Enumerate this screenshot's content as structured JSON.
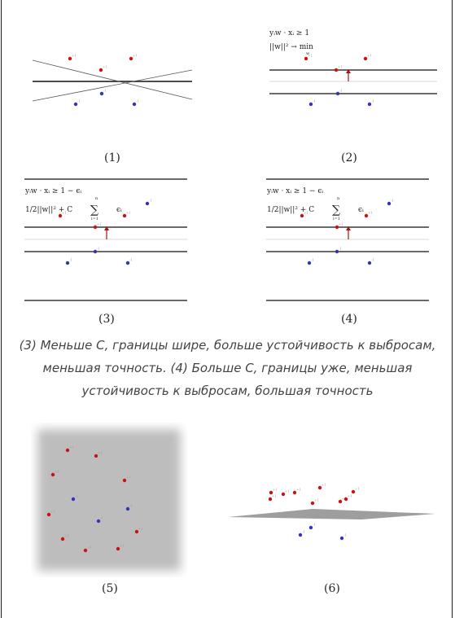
{
  "figures": {
    "f1": {
      "label": "(1)"
    },
    "f2": {
      "label": "(2)",
      "eq1": "yᵢw · xᵢ ≥ 1",
      "eq2": "||w||² → min",
      "eq2_sub": "w"
    },
    "f3": {
      "label": "(3)",
      "eq1": "yᵢw · xᵢ ≥ 1 − ϵᵢ",
      "eq2_a": "1/2||w||² + C",
      "eq2_sum": "∑",
      "eq2_top": "n",
      "eq2_bot": "i=1",
      "eq2_b": "ϵᵢ"
    },
    "f4": {
      "label": "(4)",
      "eq1": "yᵢw · xᵢ ≥ 1 − ϵᵢ",
      "eq2_a": "1/2||w||² + C",
      "eq2_sum": "∑",
      "eq2_top": "n",
      "eq2_bot": "i=1",
      "eq2_b": "ϵᵢ"
    },
    "f5": {
      "label": "(5)"
    },
    "f6": {
      "label": "(6)"
    }
  },
  "point_tags": {
    "positive": "+1",
    "negative": "-1"
  },
  "caption": "(3) Меньше C, границы шире, больше устойчивость к выбросам, меньшая точность. (4) Больше C, границы уже, меньшая устойчивость к выбросам, большая точность",
  "colors": {
    "positive": "#cc1111",
    "negative": "#3333bb",
    "line": "#111111",
    "arrow": "#aa1111",
    "thin": "#cccccc",
    "shaded": "#bdbdbd"
  }
}
